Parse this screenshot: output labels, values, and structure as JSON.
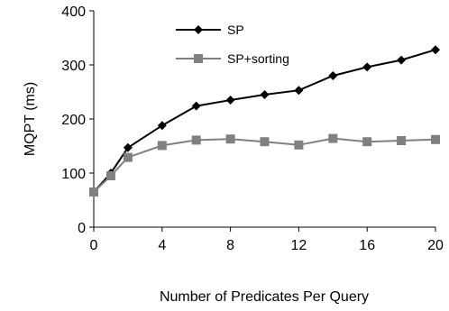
{
  "chart_data": {
    "type": "line",
    "title": "",
    "xlabel": "Number of Predicates Per Query",
    "ylabel": "MQPT (ms)",
    "xlim": [
      0,
      20
    ],
    "ylim": [
      0,
      400
    ],
    "xticks": [
      0,
      4,
      8,
      12,
      16,
      20
    ],
    "yticks": [
      0,
      100,
      200,
      300,
      400
    ],
    "grid": false,
    "legend_position": "top-left",
    "series": [
      {
        "name": "SP",
        "color": "#000000",
        "marker": "diamond",
        "x": [
          0,
          1,
          2,
          4,
          6,
          8,
          10,
          12,
          14,
          16,
          18,
          20
        ],
        "y": [
          65,
          100,
          147,
          188,
          224,
          235,
          245,
          253,
          280,
          296,
          309,
          328
        ]
      },
      {
        "name": "SP+sorting",
        "color": "#808080",
        "marker": "square",
        "x": [
          0,
          1,
          2,
          4,
          6,
          8,
          10,
          12,
          14,
          16,
          18,
          20
        ],
        "y": [
          65,
          95,
          129,
          151,
          161,
          163,
          158,
          152,
          164,
          158,
          160,
          162
        ]
      }
    ]
  }
}
